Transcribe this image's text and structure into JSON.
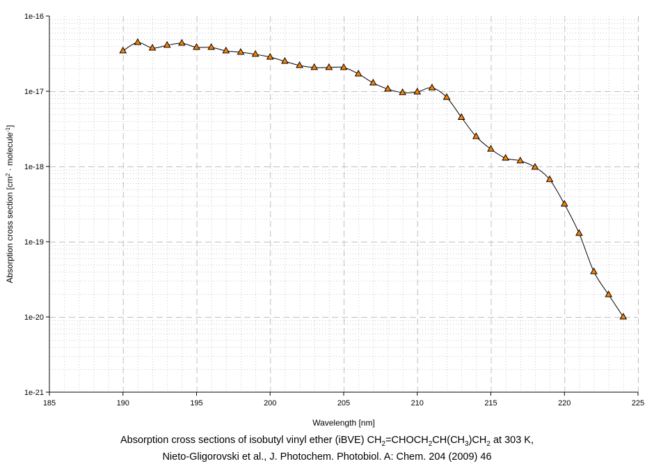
{
  "chart_data": {
    "type": "line",
    "xlabel": "Wavelength [nm]",
    "ylabel_segments": [
      {
        "t": "Absorption cross section [cm"
      },
      {
        "t": "2",
        "sup": true
      },
      {
        "t": " · molecule"
      },
      {
        "t": "-1",
        "sup": true
      },
      {
        "t": "]"
      }
    ],
    "xlim": [
      185,
      225
    ],
    "ylim": [
      1e-21,
      1e-16
    ],
    "yscale": "log",
    "x_ticks": [
      "185",
      "190",
      "195",
      "200",
      "205",
      "210",
      "215",
      "220",
      "225"
    ],
    "y_ticks": [
      "1e-21",
      "1e-20",
      "1e-19",
      "1e-18",
      "1e-17",
      "1e-16"
    ],
    "grid": true,
    "marker": "triangle",
    "marker_color": "#ff8000",
    "line_color": "#000000",
    "series": [
      {
        "name": "iBVE",
        "x": [
          190,
          191,
          192,
          193,
          194,
          195,
          196,
          197,
          198,
          199,
          200,
          201,
          202,
          203,
          204,
          205,
          206,
          207,
          208,
          209,
          210,
          211,
          212,
          213,
          214,
          215,
          216,
          217,
          218,
          219,
          220,
          221,
          222,
          223,
          224
        ],
        "y": [
          3.44e-17,
          4.45e-17,
          3.75e-17,
          4.08e-17,
          4.35e-17,
          3.83e-17,
          3.83e-17,
          3.44e-17,
          3.3e-17,
          3.1e-17,
          2.84e-17,
          2.5e-17,
          2.2e-17,
          2.07e-17,
          2.07e-17,
          2.07e-17,
          1.7e-17,
          1.29e-17,
          1.07e-17,
          9.6e-18,
          9.8e-18,
          1.11e-17,
          8.3e-18,
          4.5e-18,
          2.5e-18,
          1.7e-18,
          1.29e-18,
          1.19e-18,
          9.8e-19,
          6.7e-19,
          3.16e-19,
          1.29e-19,
          4e-20,
          1.98e-20,
          1e-20
        ]
      }
    ]
  },
  "caption": {
    "line1": [
      {
        "t": "Absorption cross sections of isobutyl vinyl ether (iBVE) CH"
      },
      {
        "t": "2",
        "sub": true
      },
      {
        "t": "=CHOCH"
      },
      {
        "t": "2",
        "sub": true
      },
      {
        "t": "CH(CH"
      },
      {
        "t": "3",
        "sub": true
      },
      {
        "t": ")CH"
      },
      {
        "t": "2",
        "sub": true
      },
      {
        "t": " at 303 K,"
      }
    ],
    "line2": "Nieto-Gligorovski et al., J. Photochem. Photobiol. A: Chem. 204 (2009) 46"
  }
}
